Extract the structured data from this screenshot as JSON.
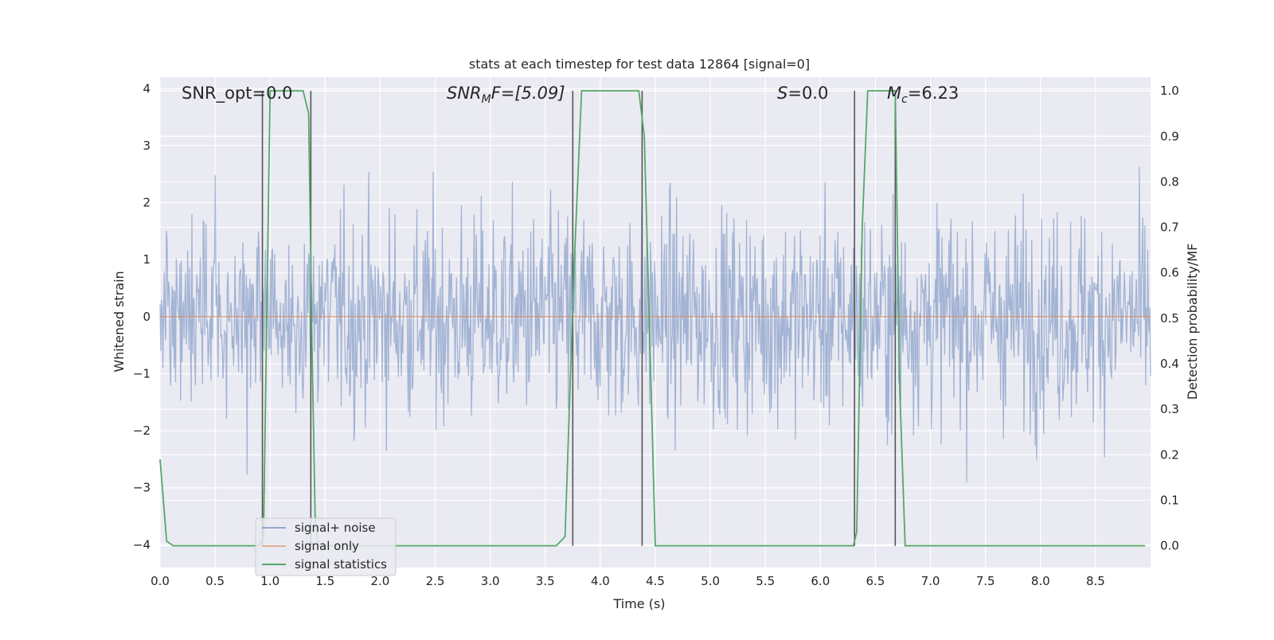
{
  "chart_data": {
    "type": "line",
    "title": "stats at each timestep for test data 12864 [signal=0]",
    "xlabel": "Time (s)",
    "ylabel": "Whitened strain",
    "y2label": "Detection probability/MF",
    "xlim": [
      0.0,
      9.0
    ],
    "ylim": [
      -4.4,
      4.2
    ],
    "y2lim": [
      -0.048,
      1.03
    ],
    "x_ticks": [
      "0.0",
      "0.5",
      "1.0",
      "1.5",
      "2.0",
      "2.5",
      "3.0",
      "3.5",
      "4.0",
      "4.5",
      "5.0",
      "5.5",
      "6.0",
      "6.5",
      "7.0",
      "7.5",
      "8.0",
      "8.5"
    ],
    "y_ticks": [
      "−4",
      "−3",
      "−2",
      "−1",
      "0",
      "1",
      "2",
      "3",
      "4"
    ],
    "y2_ticks": [
      "0.0",
      "0.1",
      "0.2",
      "0.3",
      "0.4",
      "0.5",
      "0.6",
      "0.7",
      "0.8",
      "0.9",
      "1.0"
    ],
    "grid": true,
    "legend_position": "lower-left",
    "annotations": {
      "snr_opt": "SNR_opt=0.0",
      "snr_mf_main": "SNR",
      "snr_mf_sub": "M",
      "snr_mf_tail": "F=[5.09]",
      "s_main": "S",
      "s_tail": "=0.0",
      "mc_main": "M",
      "mc_sub": "c",
      "mc_tail": "=6.23"
    },
    "series": [
      {
        "name": "signal+ noise",
        "color": "#4c72b0",
        "description_values": "whitened strain noise, approx range [-4.0, 3.8]"
      },
      {
        "name": "signal only",
        "color": "#dd8452",
        "x": [
          0.0,
          9.0
        ],
        "y": [
          0.0,
          0.0
        ]
      },
      {
        "name": "signal statistics",
        "color": "#55a868",
        "axis": "right",
        "x": [
          0.0,
          0.06,
          0.12,
          0.9,
          0.94,
          1.0,
          1.05,
          1.3,
          1.35,
          1.38,
          1.41,
          1.44,
          3.6,
          3.68,
          3.76,
          3.83,
          4.35,
          4.4,
          4.45,
          4.5,
          6.3,
          6.33,
          6.38,
          6.43,
          6.6,
          6.68,
          6.72,
          6.77,
          8.95
        ],
        "y": [
          0.19,
          0.01,
          0.0,
          0.0,
          0.02,
          1.0,
          1.0,
          1.0,
          0.95,
          0.45,
          0.05,
          0.0,
          0.0,
          0.02,
          0.6,
          1.0,
          1.0,
          0.9,
          0.45,
          0.0,
          0.0,
          0.03,
          0.7,
          1.0,
          1.0,
          1.0,
          0.35,
          0.0,
          0.0
        ]
      }
    ],
    "vertical_markers_x": [
      0.93,
      1.37,
      3.75,
      4.38,
      6.31,
      6.68
    ],
    "legend": {
      "noise_label": "signal+ noise",
      "signal_label": "signal only",
      "stats_label": "signal statistics"
    },
    "colors": {
      "background": "#eaeaf2",
      "grid": "#ffffff",
      "noise": "#4c72b0",
      "signal": "#dd8452",
      "stats": "#55a868",
      "marker": "#555555"
    }
  }
}
